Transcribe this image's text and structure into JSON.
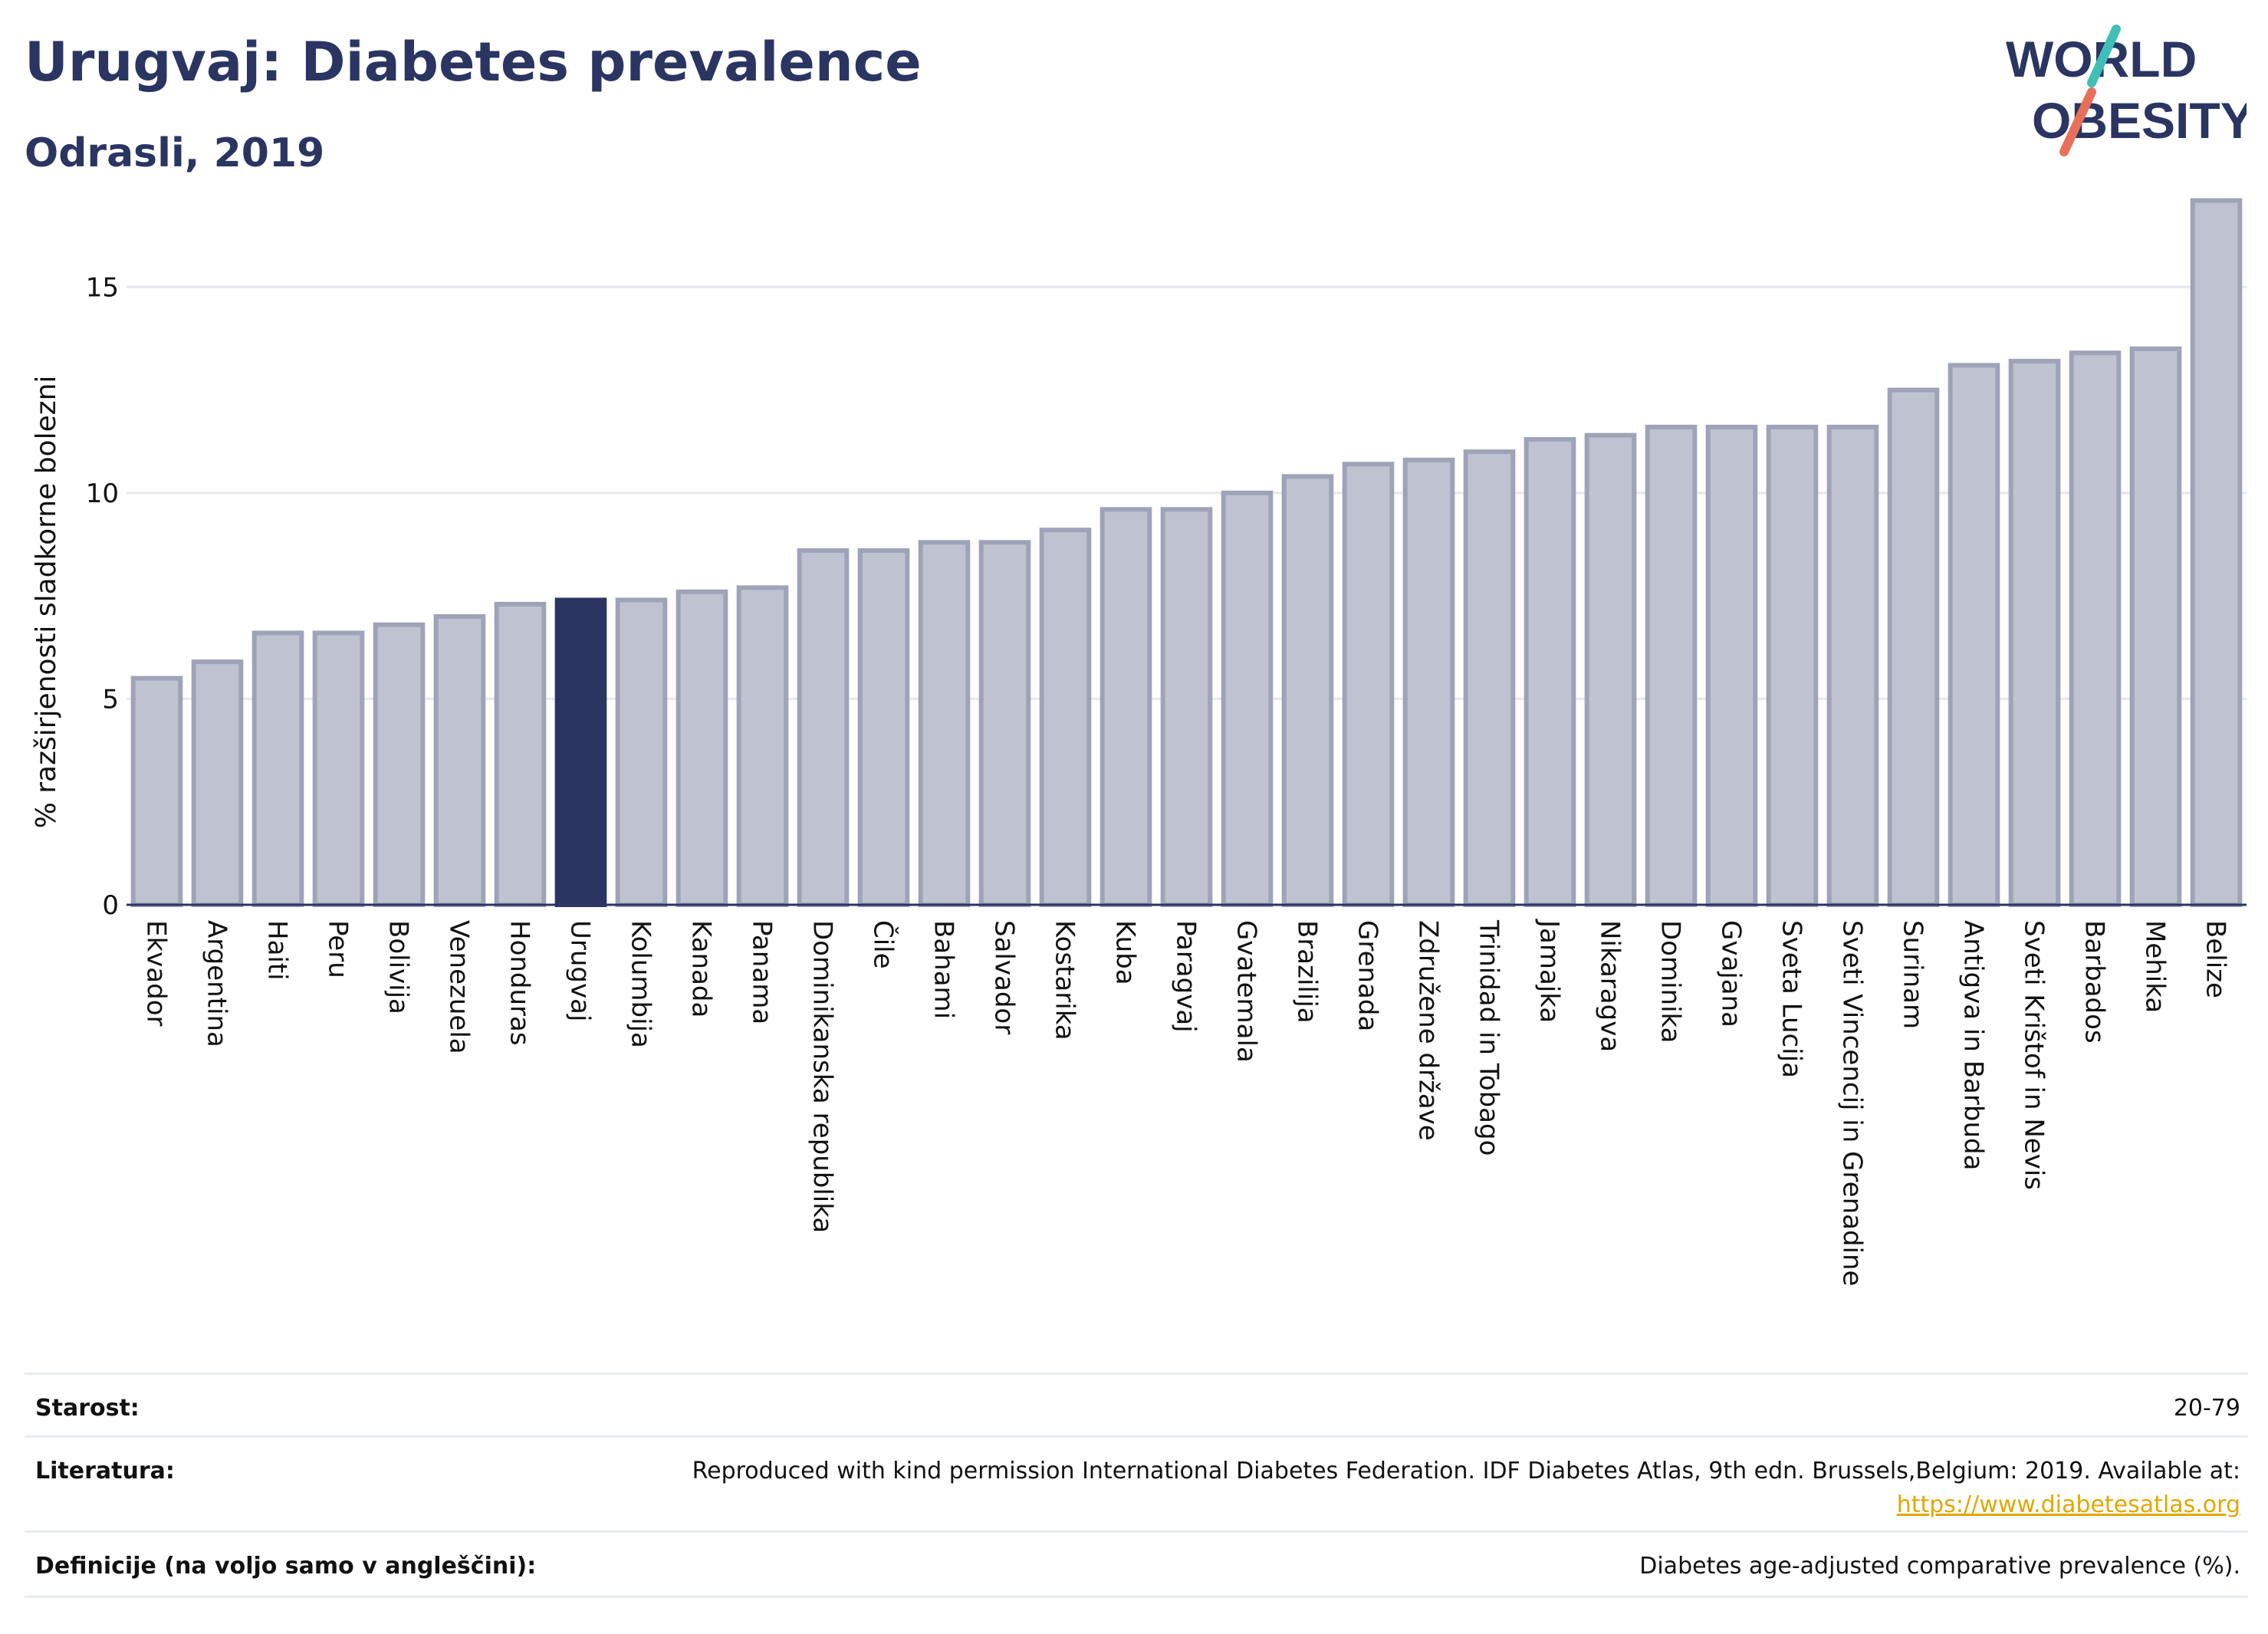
{
  "header": {
    "title": "Urugvaj: Diabetes prevalence",
    "subtitle": "Odrasli, 2019"
  },
  "logo": {
    "line1": "WORLD",
    "line2": "OBESITY",
    "accent_teal": "#3fbfb5",
    "accent_coral": "#e8705a"
  },
  "colors": {
    "bar_default": "#bfc3d1",
    "bar_stroke": "#9ea3b8",
    "bar_highlight": "#2a3562",
    "text_dark": "#2a3562",
    "link": "#e0a800"
  },
  "chart_data": {
    "type": "bar",
    "ylabel": "% razširjenosti sladkorne bolezni",
    "xlabel": "",
    "ylim": [
      0,
      17.5
    ],
    "yticks": [
      0,
      5,
      10,
      15
    ],
    "grid": true,
    "highlight": "Urugvaj",
    "categories": [
      "Ekvador",
      "Argentina",
      "Haiti",
      "Peru",
      "Bolivija",
      "Venezuela",
      "Honduras",
      "Urugvaj",
      "Kolumbija",
      "Kanada",
      "Panama",
      "Dominikanska republika",
      "Čile",
      "Bahami",
      "Salvador",
      "Kostarika",
      "Kuba",
      "Paragvaj",
      "Gvatemala",
      "Brazilija",
      "Grenada",
      "Združene države",
      "Trinidad in Tobago",
      "Jamajka",
      "Nikaragva",
      "Dominika",
      "Gvajana",
      "Sveta Lucija",
      "Sveti Vincencij in Grenadine",
      "Surinam",
      "Antigva in Barbuda",
      "Sveti Krištof in Nevis",
      "Barbados",
      "Mehika",
      "Belize"
    ],
    "values": [
      5.5,
      5.9,
      6.6,
      6.6,
      6.8,
      7.0,
      7.3,
      7.4,
      7.4,
      7.6,
      7.7,
      8.6,
      8.6,
      8.8,
      8.8,
      9.1,
      9.6,
      9.6,
      10.0,
      10.4,
      10.7,
      10.8,
      11.0,
      11.3,
      11.4,
      11.6,
      11.6,
      11.6,
      11.6,
      12.5,
      13.1,
      13.2,
      13.4,
      13.5,
      17.1
    ]
  },
  "info": {
    "age_label": "Starost:",
    "age_value": "20-79",
    "lit_label": "Literatura:",
    "lit_value": "Reproduced with kind permission International Diabetes Federation. IDF Diabetes Atlas, 9th edn. Brussels,Belgium: 2019. Available at:",
    "lit_link": "https://www.diabetesatlas.org",
    "def_label": "Definicije (na voljo samo v angleščini):",
    "def_value": "Diabetes age-adjusted comparative prevalence (%)."
  }
}
